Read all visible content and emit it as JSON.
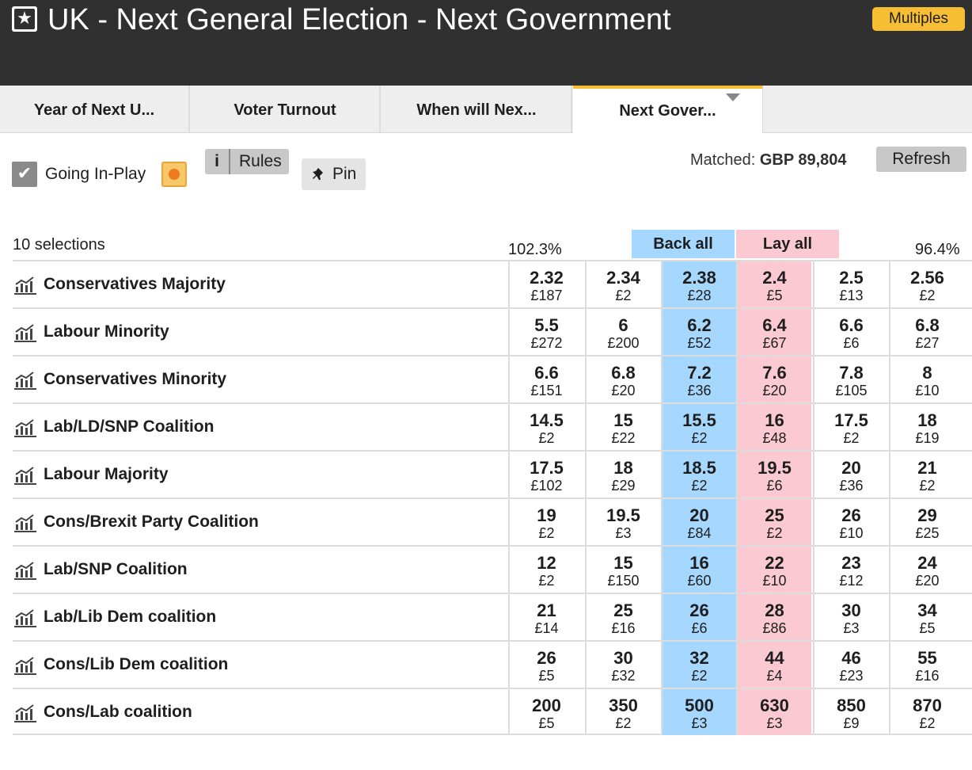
{
  "header": {
    "star_icon": "star-icon",
    "title": "UK - Next General Election - Next Government",
    "multiples_label": "Multiples",
    "background_color": "#303030",
    "accent_color": "#f7be33"
  },
  "tabs": [
    {
      "label": "Year of Next U...",
      "active": false
    },
    {
      "label": "Voter Turnout",
      "active": false
    },
    {
      "label": "When will Nex...",
      "active": false
    },
    {
      "label": "Next Gover...",
      "active": true
    }
  ],
  "controls": {
    "going_inplay_label": "Going In-Play",
    "going_inplay_checked": true,
    "rules_label": "Rules",
    "rules_icon": "info-icon",
    "pin_label": "Pin",
    "pin_icon": "pushpin-icon",
    "matched_label": "Matched:",
    "matched_value": "GBP 89,804",
    "refresh_label": "Refresh"
  },
  "market": {
    "selections_label": "10 selections",
    "back_book_pct": "102.3%",
    "lay_book_pct": "96.4%",
    "back_all_label": "Back all",
    "lay_all_label": "Lay all",
    "back_color": "#a6d8ff",
    "lay_color": "#fac9d1",
    "runners": [
      {
        "name": "Conservatives Majority",
        "back": [
          {
            "price": "2.32",
            "size": "£187"
          },
          {
            "price": "2.34",
            "size": "£2"
          },
          {
            "price": "2.38",
            "size": "£28"
          }
        ],
        "lay": [
          {
            "price": "2.4",
            "size": "£5"
          },
          {
            "price": "2.5",
            "size": "£13"
          },
          {
            "price": "2.56",
            "size": "£2"
          }
        ]
      },
      {
        "name": "Labour Minority",
        "back": [
          {
            "price": "5.5",
            "size": "£272"
          },
          {
            "price": "6",
            "size": "£200"
          },
          {
            "price": "6.2",
            "size": "£52"
          }
        ],
        "lay": [
          {
            "price": "6.4",
            "size": "£67"
          },
          {
            "price": "6.6",
            "size": "£6"
          },
          {
            "price": "6.8",
            "size": "£27"
          }
        ]
      },
      {
        "name": "Conservatives Minority",
        "back": [
          {
            "price": "6.6",
            "size": "£151"
          },
          {
            "price": "6.8",
            "size": "£20"
          },
          {
            "price": "7.2",
            "size": "£36"
          }
        ],
        "lay": [
          {
            "price": "7.6",
            "size": "£20"
          },
          {
            "price": "7.8",
            "size": "£105"
          },
          {
            "price": "8",
            "size": "£10"
          }
        ]
      },
      {
        "name": "Lab/LD/SNP Coalition",
        "back": [
          {
            "price": "14.5",
            "size": "£2"
          },
          {
            "price": "15",
            "size": "£22"
          },
          {
            "price": "15.5",
            "size": "£2"
          }
        ],
        "lay": [
          {
            "price": "16",
            "size": "£48"
          },
          {
            "price": "17.5",
            "size": "£2"
          },
          {
            "price": "18",
            "size": "£19"
          }
        ]
      },
      {
        "name": "Labour Majority",
        "back": [
          {
            "price": "17.5",
            "size": "£102"
          },
          {
            "price": "18",
            "size": "£29"
          },
          {
            "price": "18.5",
            "size": "£2"
          }
        ],
        "lay": [
          {
            "price": "19.5",
            "size": "£6"
          },
          {
            "price": "20",
            "size": "£36"
          },
          {
            "price": "21",
            "size": "£2"
          }
        ]
      },
      {
        "name": "Cons/Brexit Party Coalition",
        "back": [
          {
            "price": "19",
            "size": "£2"
          },
          {
            "price": "19.5",
            "size": "£3"
          },
          {
            "price": "20",
            "size": "£84"
          }
        ],
        "lay": [
          {
            "price": "25",
            "size": "£2"
          },
          {
            "price": "26",
            "size": "£10"
          },
          {
            "price": "29",
            "size": "£25"
          }
        ]
      },
      {
        "name": "Lab/SNP Coalition",
        "back": [
          {
            "price": "12",
            "size": "£2"
          },
          {
            "price": "15",
            "size": "£150"
          },
          {
            "price": "16",
            "size": "£60"
          }
        ],
        "lay": [
          {
            "price": "22",
            "size": "£10"
          },
          {
            "price": "23",
            "size": "£12"
          },
          {
            "price": "24",
            "size": "£20"
          }
        ]
      },
      {
        "name": "Lab/Lib Dem coalition",
        "back": [
          {
            "price": "21",
            "size": "£14"
          },
          {
            "price": "25",
            "size": "£16"
          },
          {
            "price": "26",
            "size": "£6"
          }
        ],
        "lay": [
          {
            "price": "28",
            "size": "£86"
          },
          {
            "price": "30",
            "size": "£3"
          },
          {
            "price": "34",
            "size": "£5"
          }
        ]
      },
      {
        "name": "Cons/Lib Dem coalition",
        "back": [
          {
            "price": "26",
            "size": "£5"
          },
          {
            "price": "30",
            "size": "£32"
          },
          {
            "price": "32",
            "size": "£2"
          }
        ],
        "lay": [
          {
            "price": "44",
            "size": "£4"
          },
          {
            "price": "46",
            "size": "£23"
          },
          {
            "price": "55",
            "size": "£16"
          }
        ]
      },
      {
        "name": "Cons/Lab coalition",
        "back": [
          {
            "price": "200",
            "size": "£5"
          },
          {
            "price": "350",
            "size": "£2"
          },
          {
            "price": "500",
            "size": "£3"
          }
        ],
        "lay": [
          {
            "price": "630",
            "size": "£3"
          },
          {
            "price": "850",
            "size": "£9"
          },
          {
            "price": "870",
            "size": "£2"
          }
        ]
      }
    ]
  }
}
